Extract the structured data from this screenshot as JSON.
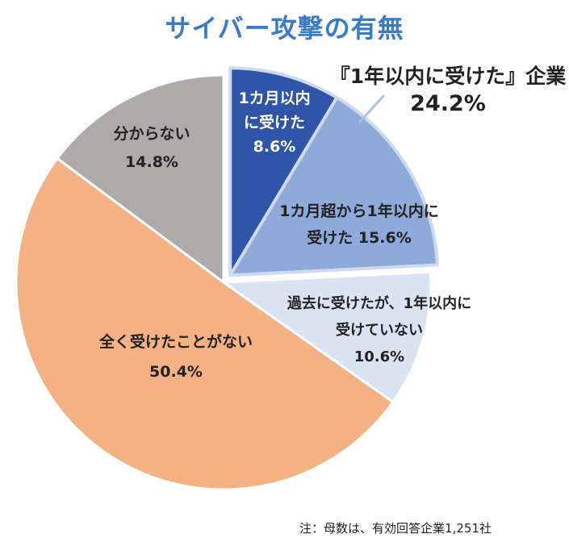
{
  "chart_data": {
    "type": "pie",
    "title": "サイバー攻撃の有無",
    "slices": [
      {
        "label_lines": [
          "1カ月以内",
          "に受けた"
        ],
        "value": 8.6,
        "value_label": "8.6%",
        "color": "#2f55a8",
        "text_color": "#ffffff",
        "exploded": true
      },
      {
        "label_lines": [
          "1カ月超から1年以内に",
          "受けた 15.6%"
        ],
        "value": 15.6,
        "value_label": "",
        "color": "#8eaadb",
        "text_color": "#222222",
        "exploded": true
      },
      {
        "label_lines": [
          "過去に受けたが、1年以内に",
          "受けていない"
        ],
        "value": 10.6,
        "value_label": "10.6%",
        "color": "#dae3f3",
        "text_color": "#222222",
        "exploded": false
      },
      {
        "label_lines": [
          "全く受けたことがない"
        ],
        "value": 50.4,
        "value_label": "50.4%",
        "color": "#f4b183",
        "text_color": "#222222",
        "exploded": false
      },
      {
        "label_lines": [
          "分からない"
        ],
        "value": 14.8,
        "value_label": "14.8%",
        "color": "#aeaaaa",
        "text_color": "#222222",
        "exploded": false
      }
    ],
    "callout": {
      "label": "『1年以内に受けた』企業",
      "value_label": "24.2%",
      "value": 24.2
    }
  },
  "footnote": "注：母数は、有効回答企業1,251社"
}
